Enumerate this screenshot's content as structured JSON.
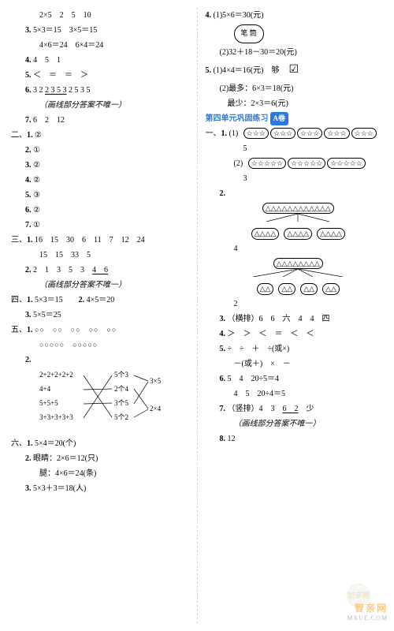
{
  "left": {
    "pre_sec": [
      {
        "pad": 2,
        "text_parts": [
          "2×5　2　5　10"
        ]
      },
      {
        "pad": 1,
        "num": "3.",
        "text_parts": [
          "5×3＝15　3×5＝15"
        ]
      },
      {
        "pad": 2,
        "text_parts": [
          "4×6＝24　6×4＝24"
        ]
      },
      {
        "pad": 1,
        "num": "4.",
        "text_parts": [
          "4　5　1"
        ]
      },
      {
        "pad": 1,
        "num": "5.",
        "text_parts": [
          "＜　＝　＝　＞"
        ]
      },
      {
        "pad": 1,
        "num": "6.",
        "text_parts": [
          "3 2 ",
          "<u>2 3 5 3</u>",
          " 2 5 3 5"
        ]
      },
      {
        "pad": 2,
        "note": "（画线部分答案不唯一）"
      },
      {
        "pad": 1,
        "num": "7.",
        "text_parts": [
          "6　2　12"
        ]
      }
    ],
    "sec2": {
      "title": "二、",
      "items": [
        {
          "n": "1.",
          "v": "②"
        },
        {
          "n": "2.",
          "v": "①"
        },
        {
          "n": "3.",
          "v": "②"
        },
        {
          "n": "4.",
          "v": "②"
        },
        {
          "n": "5.",
          "v": "③"
        },
        {
          "n": "6.",
          "v": "②"
        },
        {
          "n": "7.",
          "v": "①"
        }
      ]
    },
    "sec3": {
      "title": "三、",
      "items": [
        {
          "n": "1.",
          "lines": [
            "16　15　30　6　11　7　12　24",
            "15　15　33　5"
          ]
        },
        {
          "n": "2.",
          "lines": [
            "2　1　3　5　3　<u>4　6</u>"
          ],
          "note": "（画线部分答案不唯一）"
        }
      ]
    },
    "sec4": {
      "title": "四、",
      "text": "5×3＝15　　",
      "item2": "2.",
      "item2_text": "4×5＝20",
      "item3": "3.",
      "item3_text": "5×5＝25"
    },
    "sec5": {
      "title": "五、",
      "rows": [
        "○○　○○　○○　○○　○○",
        "○○○○○　○○○○○"
      ],
      "match_left": [
        "2+2+2+2+2",
        "4+4",
        "5+5+5",
        "3+3+3+3+3"
      ],
      "match_right": [
        "5个3",
        "2个4",
        "3个5",
        "5个2"
      ],
      "match_rr": [
        "3×5",
        "2×4",
        ""
      ],
      "item2": "2."
    },
    "sec6": {
      "title": "六、",
      "items": [
        {
          "n": "1.",
          "t": "5×4＝20(个)"
        },
        {
          "n": "2.",
          "t": "眼睛：2×6＝12(只)"
        },
        {
          "n": "",
          "t": "腿：4×6＝24(条)",
          "pad": 3
        },
        {
          "n": "3.",
          "t": "5×3＋3＝18(人)"
        }
      ]
    }
  },
  "right": {
    "top": [
      {
        "n": "4.",
        "t": "(1)5×6＝30(元)"
      },
      {
        "oval": "笔 筒"
      },
      {
        "pad": 2,
        "t": "(2)32＋18－30＝20(元)"
      },
      {
        "n": "5.",
        "t": "(1)4×4＝16(元)　够　",
        "tick": true
      },
      {
        "pad": 2,
        "t": "(2)最多：6×3＝18(元)"
      },
      {
        "pad": 2,
        "t": "　最少：2×3＝6(元)"
      }
    ],
    "header": "第四单元巩固练习",
    "badge": "A卷",
    "sec1": {
      "title": "一、",
      "q1": {
        "n": "1.",
        "p1_label": "(1)",
        "p1_star_groups": 5,
        "p1_star_per": 3,
        "p1_ans": "5",
        "p2_label": "(2)",
        "p2_star_groups": 3,
        "p2_star_per": 5,
        "p2_ans": "3"
      },
      "q2": {
        "n": "2.",
        "tree1": {
          "top_count": 12,
          "children": [
            4,
            4,
            4
          ],
          "ans": "4"
        },
        "tree2": {
          "top_count": 8,
          "children": [
            2,
            2,
            2,
            2
          ],
          "ans": "2"
        }
      },
      "q3": {
        "n": "3.",
        "t": "（横排）6　6　六　4　4　四"
      },
      "q4": {
        "n": "4.",
        "t": "＞　＞　＜　＝　＜　＜"
      },
      "q5": {
        "n": "5.",
        "lines": [
          "÷　÷　＋　÷(或×)",
          "－(或＋)　×　－"
        ]
      },
      "q6": {
        "n": "6.",
        "t": "5　4　20÷5＝4"
      },
      "q6b": {
        "t": "4　5　20÷4＝5"
      },
      "q7": {
        "n": "7.",
        "t": "（竖排）4　3　",
        "u": "6　2",
        "tail": "　少"
      },
      "q7_note": "（画线部分答案不唯一）",
      "q8": {
        "n": "8.",
        "t": "12"
      }
    }
  },
  "watermark": {
    "line1": "智亲网",
    "line2": "MXUE.COM",
    "circ": "智亲圈"
  }
}
